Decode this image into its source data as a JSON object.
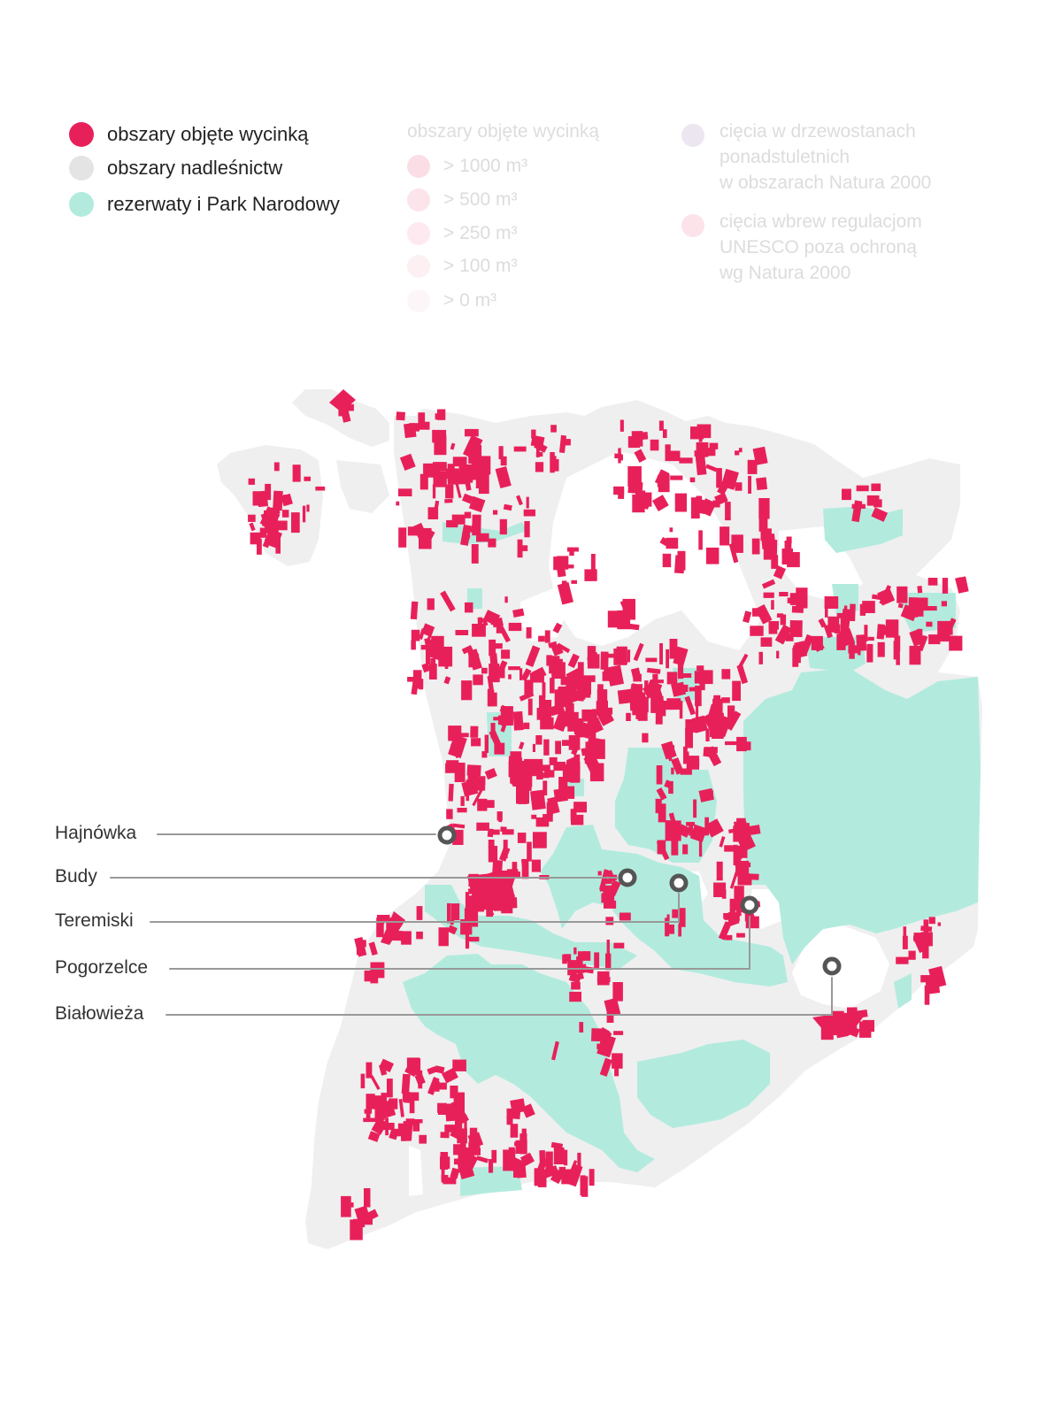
{
  "legend": {
    "items": [
      {
        "label": "obszary objęte wycinką",
        "color": "#e8205a"
      },
      {
        "label": "obszary nadleśnictw",
        "color": "#e4e4e4"
      },
      {
        "label": "rezerwaty i Park Narodowy",
        "color": "#b2ebde"
      }
    ],
    "volume": {
      "title": "obszary objęte wycinką",
      "items": [
        {
          "label": "> 1000 m³",
          "color": "#fbdde6"
        },
        {
          "label": "> 500 m³",
          "color": "#fce4eb"
        },
        {
          "label": "> 250 m³",
          "color": "#fde9ef"
        },
        {
          "label": "> 100 m³",
          "color": "#fdf0f3"
        },
        {
          "label": "> 0 m³",
          "color": "#fdf6f8"
        }
      ]
    },
    "natura": [
      {
        "lines": [
          "cięcia w drzewostanach",
          "ponadstuletnich",
          "w obszarach Natura 2000"
        ],
        "color": "#ece6f0"
      },
      {
        "lines": [
          "cięcia wbrew regulacjom",
          "UNESCO poza ochroną",
          "wg Natura 2000"
        ],
        "color": "#fce3ea"
      }
    ]
  },
  "places": [
    {
      "name": "Hajnówka"
    },
    {
      "name": "Budy"
    },
    {
      "name": "Teremiski"
    },
    {
      "name": "Pogorzelce"
    },
    {
      "name": "Białowieża"
    }
  ],
  "colors": {
    "logging": "#e8205a",
    "forest": "#efefef",
    "reserve": "#b2ebde",
    "marker": "#555555",
    "leader": "#999999"
  }
}
